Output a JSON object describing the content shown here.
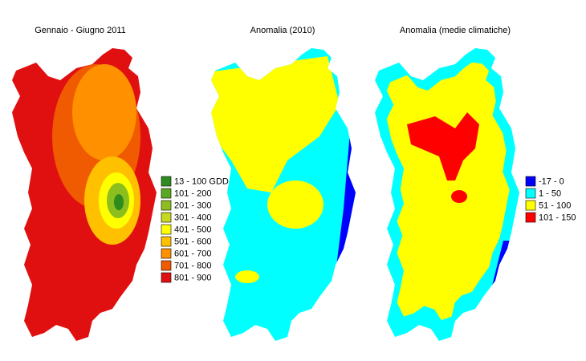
{
  "maps": [
    {
      "title": "Gennaio - Giugno 2011",
      "legend": [
        {
          "label": "13 - 100 GDD",
          "color": "#2e8b1e"
        },
        {
          "label": "101 - 200",
          "color": "#5aa820"
        },
        {
          "label": "201 - 300",
          "color": "#8cbf1e"
        },
        {
          "label": "301 - 400",
          "color": "#c8d81e"
        },
        {
          "label": "401 - 500",
          "color": "#ffff00"
        },
        {
          "label": "501 - 600",
          "color": "#ffc000"
        },
        {
          "label": "601 - 700",
          "color": "#ff9000"
        },
        {
          "label": "701 - 800",
          "color": "#f05a00"
        },
        {
          "label": "801 - 900",
          "color": "#e01010"
        }
      ]
    },
    {
      "title": "Anomalia (2010)"
    },
    {
      "title": "Anomalia (medie climatiche)",
      "legend": [
        {
          "label": "-17 - 0",
          "color": "#0000ff"
        },
        {
          "label": "1 - 50",
          "color": "#00ffff"
        },
        {
          "label": "51 - 100",
          "color": "#ffff00"
        },
        {
          "label": "101 - 150",
          "color": "#ff0000"
        }
      ]
    }
  ]
}
